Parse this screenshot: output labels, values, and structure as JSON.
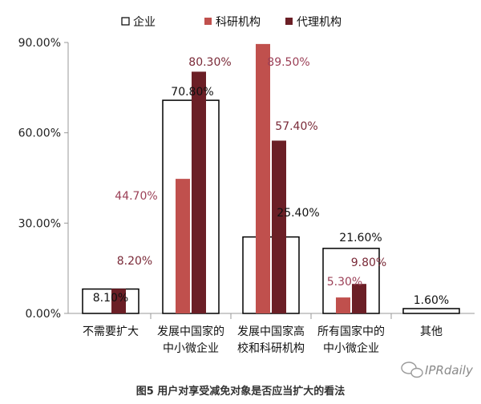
{
  "chart_data": {
    "type": "bar",
    "title": "",
    "caption": "图5 用户对享受减免对象是否应当扩大的看法",
    "ylim": [
      0,
      90
    ],
    "yticks": [
      "0.00%",
      "30.00%",
      "60.00%",
      "90.00%"
    ],
    "categories": [
      [
        "不需要扩大"
      ],
      [
        "发展中国家的",
        "中小微企业"
      ],
      [
        "发展中国家高",
        "校和科研机构"
      ],
      [
        "所有国家中的",
        "中小微企业"
      ],
      [
        "其他"
      ]
    ],
    "series": [
      {
        "name": "企业",
        "color": "#ffffff",
        "stroke": "#000000",
        "values": [
          8.1,
          70.8,
          25.4,
          21.6,
          1.6
        ],
        "labels": [
          "8.10%",
          "70.80%",
          "25.40%",
          "21.60%",
          "1.60%"
        ]
      },
      {
        "name": "科研机构",
        "color": "#c0504d",
        "labelColor": "#9b3f56",
        "values": [
          0,
          44.7,
          89.5,
          5.3,
          null
        ],
        "labels": [
          "",
          "44.70%",
          "89.50%",
          "5.30%",
          ""
        ]
      },
      {
        "name": "代理机构",
        "color": "#6b1f26",
        "labelColor": "#7a2a38",
        "values": [
          8.2,
          80.3,
          57.4,
          9.8,
          null
        ],
        "labels": [
          "8.20%",
          "80.30%",
          "57.40%",
          "9.80%",
          ""
        ]
      }
    ],
    "legend_position": "top"
  },
  "watermark": {
    "icon": "wechat-icon",
    "text": "IPRdaily"
  }
}
